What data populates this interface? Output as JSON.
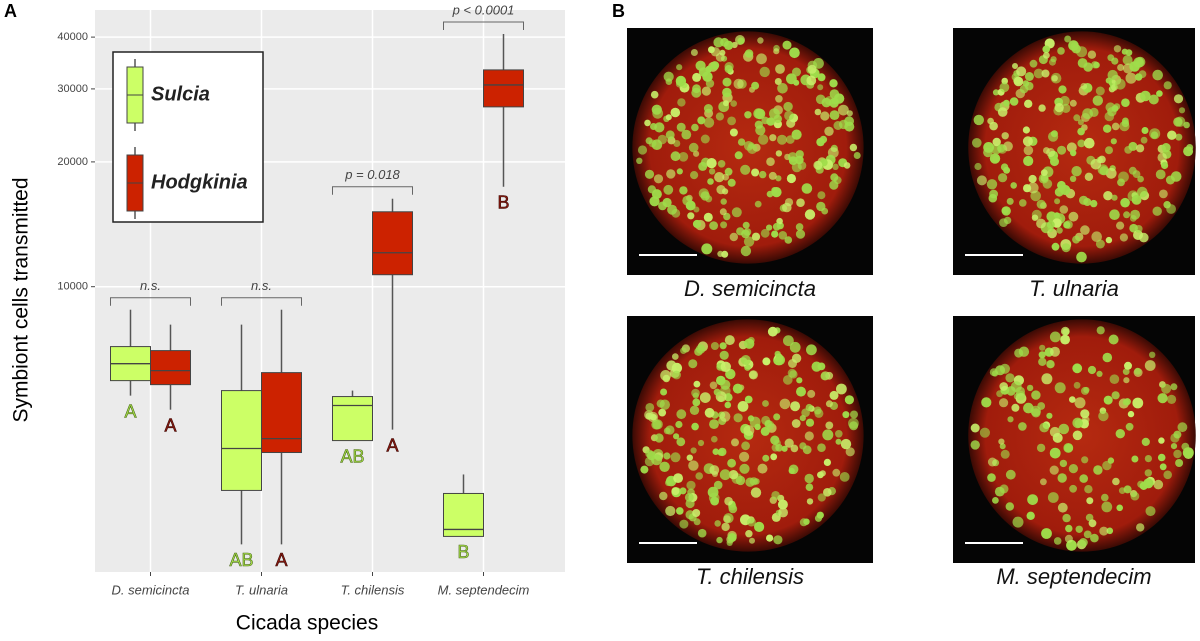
{
  "chart_data": {
    "type": "box",
    "panel_label": "A",
    "ylabel": "Symbiont cells transmitted",
    "xlabel": "Cicada species",
    "categories": [
      "D. semicincta",
      "T. ulnaria",
      "T. chilensis",
      "M. septendecim"
    ],
    "ylim": [
      2050,
      46500
    ],
    "log_y": true,
    "yticks": [
      10000,
      20000,
      30000,
      40000
    ],
    "grid": true,
    "series": [
      {
        "name": "Sulcia",
        "color": "#ccff66",
        "values": [
          {
            "min": 5460,
            "q1": 5935,
            "median": 6520,
            "q3": 7170,
            "max": 8800
          },
          {
            "min": 2390,
            "q1": 3225,
            "median": 4070,
            "q3": 5615,
            "max": 8100
          },
          {
            "min": 4254,
            "q1": 4254,
            "median": 5168,
            "q3": 5432,
            "max": 5615
          },
          {
            "min": 2498,
            "q1": 2498,
            "median": 2597,
            "q3": 3171,
            "max": 3524
          }
        ],
        "letters": [
          "A",
          "AB",
          "AB",
          "B"
        ]
      },
      {
        "name": "Hodgkinia",
        "color": "#cc2200",
        "values": [
          {
            "min": 5050,
            "q1": 5804,
            "median": 6273,
            "q3": 7012,
            "max": 8100
          },
          {
            "min": 2390,
            "q1": 3981,
            "median": 4301,
            "q3": 6205,
            "max": 8800
          },
          {
            "min": 4521,
            "q1": 10688,
            "median": 12076,
            "q3": 15160,
            "max": 16300
          },
          {
            "min": 17420,
            "q1": 27150,
            "median": 30670,
            "q3": 33340,
            "max": 40700
          }
        ],
        "letters": [
          "A",
          "A",
          "A",
          "B"
        ]
      }
    ],
    "comparisons": [
      "n.s.",
      "n.s.",
      "p = 0.018",
      "p < 0.0001"
    ]
  },
  "panel_b": {
    "panel_label": "B",
    "images": [
      {
        "caption": "D. semicincta"
      },
      {
        "caption": "T. ulnaria"
      },
      {
        "caption": "T. chilensis"
      },
      {
        "caption": "M. septendecim"
      }
    ]
  }
}
